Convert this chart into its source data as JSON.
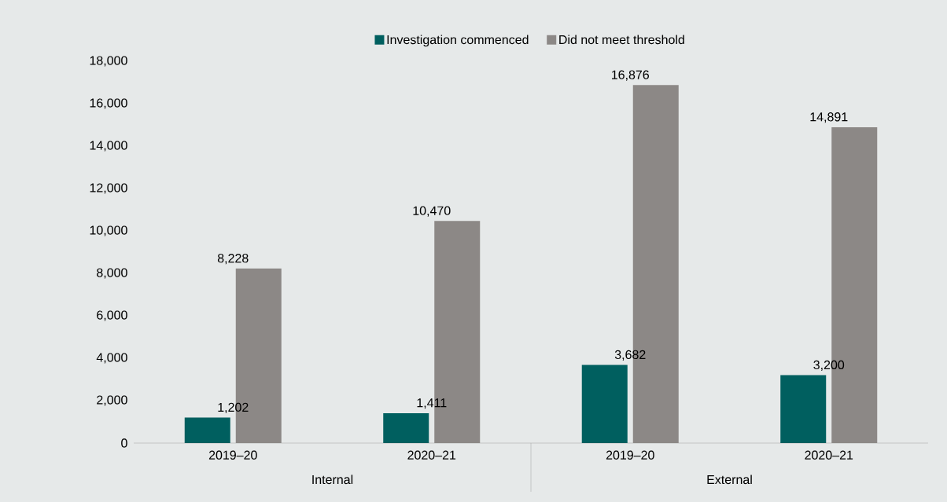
{
  "chart_data": {
    "type": "bar",
    "categories": [
      "2019–20",
      "2020–21",
      "2019–20",
      "2020–21"
    ],
    "series": [
      {
        "name": "Investigation commenced",
        "color": "#005f5f",
        "values": [
          1202,
          1411,
          3682,
          3200
        ],
        "value_labels": [
          "1,202",
          "1,411",
          "3,682",
          "3,200"
        ]
      },
      {
        "name": "Did not meet threshold",
        "color": "#8c8886",
        "values": [
          8228,
          10470,
          16876,
          14891
        ],
        "value_labels": [
          "8,228",
          "10,470",
          "16,876",
          "14,891"
        ]
      }
    ],
    "ylim": [
      0,
      18000
    ],
    "yticks": [
      0,
      {
        "value": 2000,
        "label": "2,000"
      },
      {
        "value": 4000,
        "label": "4,000"
      },
      {
        "value": 6000,
        "label": "6,000"
      },
      {
        "value": 8000,
        "label": "8,000"
      },
      {
        "value": 10000,
        "label": "10,000"
      },
      {
        "value": 12000,
        "label": "12,000"
      },
      {
        "value": 14000,
        "label": "14,000"
      },
      {
        "value": 16000,
        "label": "16,000"
      },
      {
        "value": 18000,
        "label": "18,000"
      }
    ],
    "annotations": [
      "Internal",
      "External"
    ],
    "legend": "top",
    "grid": false
  }
}
